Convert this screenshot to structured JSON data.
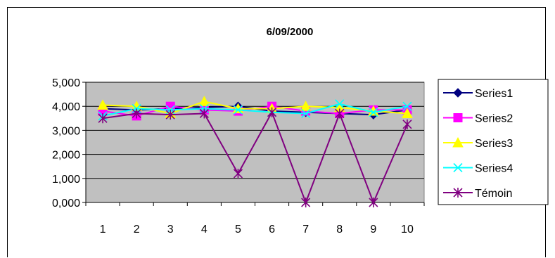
{
  "chart_data": {
    "type": "line",
    "title": "6/09/2000",
    "xlabel": "",
    "ylabel": "",
    "categories": [
      "1",
      "2",
      "3",
      "4",
      "5",
      "6",
      "7",
      "8",
      "9",
      "10"
    ],
    "ylim": [
      0,
      5000
    ],
    "yticks": [
      0,
      1000,
      2000,
      3000,
      4000,
      5000
    ],
    "ytick_labels": [
      "0,000",
      "1,000",
      "2,000",
      "3,000",
      "4,000",
      "5,000"
    ],
    "grid": true,
    "plot_background": "#c0c0c0",
    "legend_position": "right",
    "series": [
      {
        "name": "Series1",
        "color": "#000080",
        "marker": "diamond",
        "values": [
          3900,
          3850,
          3900,
          3950,
          4000,
          3800,
          3750,
          3700,
          3650,
          3850
        ]
      },
      {
        "name": "Series2",
        "color": "#ff00ff",
        "marker": "square",
        "values": [
          3800,
          3600,
          4000,
          3850,
          3800,
          4000,
          3800,
          3700,
          3850,
          3850
        ]
      },
      {
        "name": "Series3",
        "color": "#ffff00",
        "marker": "triangle",
        "values": [
          4050,
          4000,
          3700,
          4200,
          3900,
          3900,
          4000,
          3950,
          3800,
          3700
        ]
      },
      {
        "name": "Series4",
        "color": "#00ffff",
        "marker": "x",
        "values": [
          3600,
          3900,
          3850,
          3900,
          3850,
          3750,
          3700,
          4100,
          3750,
          4000
        ]
      },
      {
        "name": "Témoin",
        "color": "#800080",
        "marker": "star",
        "values": [
          3500,
          3700,
          3650,
          3700,
          1200,
          3750,
          0,
          3700,
          0,
          3250
        ]
      }
    ]
  }
}
